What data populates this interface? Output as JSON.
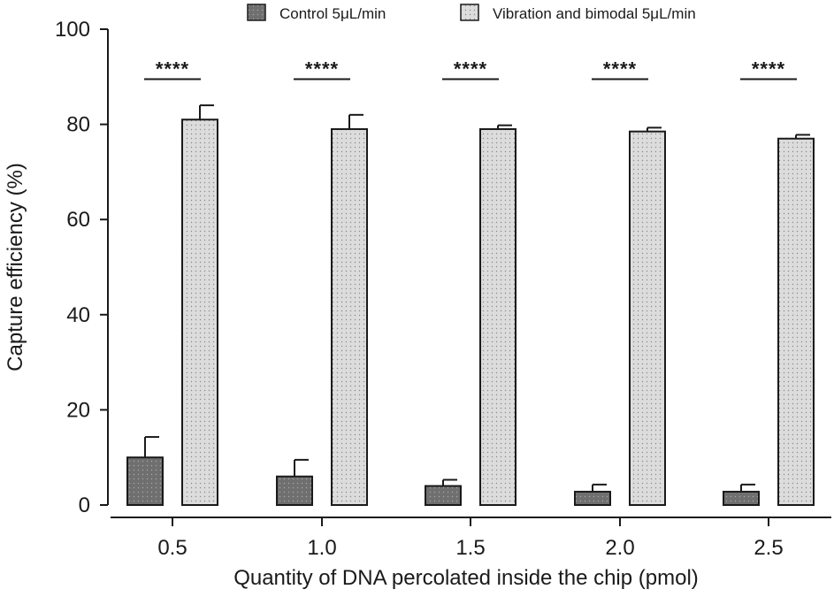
{
  "chart_data": {
    "type": "bar",
    "title": "",
    "xlabel": "Quantity of DNA percolated inside the chip (pmol)",
    "ylabel": "Capture efficiency (%)",
    "ylim": [
      0,
      100
    ],
    "yticks": [
      0,
      20,
      40,
      60,
      80,
      100
    ],
    "categories": [
      "0.5",
      "1.0",
      "1.5",
      "2.0",
      "2.5"
    ],
    "series": [
      {
        "name": "Control 5μL/min",
        "values": [
          10,
          6,
          4,
          2.8,
          2.8
        ],
        "errors": [
          4.3,
          3.5,
          1.3,
          1.5,
          1.5
        ],
        "fill": "#6f6f6f",
        "pattern": "dots-dark"
      },
      {
        "name": "Vibration and bimodal 5μL/min",
        "values": [
          81,
          79,
          79,
          78.5,
          77
        ],
        "errors": [
          3,
          3,
          0.8,
          0.8,
          0.8
        ],
        "fill": "#d6d6d6",
        "pattern": "dots-light"
      }
    ],
    "significance": [
      "****",
      "****",
      "****",
      "****",
      "****"
    ],
    "legend_position": "top",
    "grid": false
  }
}
